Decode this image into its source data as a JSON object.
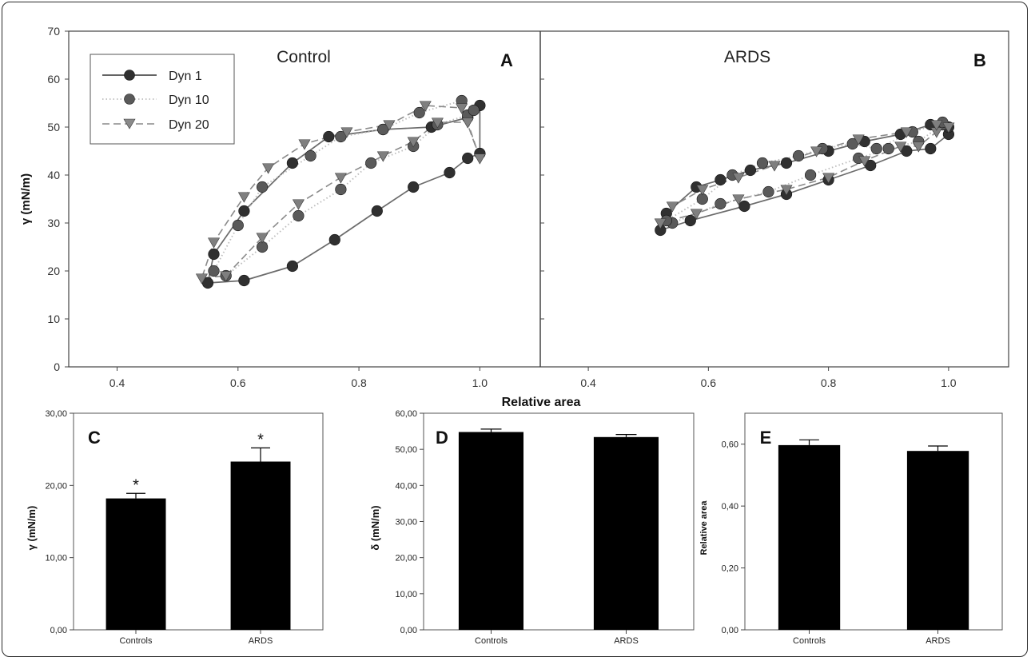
{
  "chart_data": [
    {
      "type": "line",
      "panel_letter": "A",
      "panel_title": "Control",
      "ylabel": "γ (mN/m)",
      "xlim": [
        0.32,
        1.1
      ],
      "ylim": [
        0,
        70
      ],
      "yticks": [
        "0",
        "10",
        "20",
        "30",
        "40",
        "50",
        "60",
        "70"
      ],
      "xticks": [
        [
          "0.4",
          0.4
        ],
        [
          "0.6",
          0.6
        ],
        [
          "0.8",
          0.8
        ],
        [
          "1.0",
          1.0
        ]
      ],
      "grid": false,
      "legend": {
        "placement": "top-left",
        "entries": [
          "Dyn 1",
          "Dyn 10",
          "Dyn 20"
        ]
      },
      "series": [
        {
          "name": "Dyn 1",
          "marker": "circle",
          "line": "solid",
          "color": "#303030",
          "x": [
            1.0,
            0.98,
            0.95,
            0.89,
            0.83,
            0.76,
            0.69,
            0.61,
            0.55,
            0.56,
            0.61,
            0.69,
            0.75,
            0.84,
            0.92,
            0.98,
            1.0
          ],
          "y": [
            44.5,
            43.5,
            40.5,
            37.5,
            32.5,
            26.5,
            21.0,
            18.0,
            17.5,
            23.5,
            32.5,
            42.5,
            48.0,
            49.5,
            50.0,
            52.0,
            54.5
          ]
        },
        {
          "name": "Dyn 10",
          "marker": "circle",
          "line": "dotted",
          "color": "#5a5a5a",
          "x": [
            0.98,
            0.93,
            0.89,
            0.82,
            0.77,
            0.7,
            0.64,
            0.58,
            0.56,
            0.6,
            0.64,
            0.72,
            0.77,
            0.84,
            0.9,
            0.97,
            0.99
          ],
          "y": [
            52.5,
            50.5,
            46.0,
            42.5,
            37.0,
            31.5,
            25.0,
            19.0,
            20.0,
            29.5,
            37.5,
            44.0,
            48.0,
            49.5,
            53.0,
            55.5,
            53.5
          ]
        },
        {
          "name": "Dyn 20",
          "marker": "triangle-down",
          "line": "dashed",
          "color": "#7f7f7f",
          "x": [
            1.0,
            0.98,
            0.93,
            0.89,
            0.84,
            0.77,
            0.7,
            0.64,
            0.58,
            0.54,
            0.56,
            0.61,
            0.65,
            0.71,
            0.78,
            0.85,
            0.91,
            0.97
          ],
          "y": [
            43.5,
            51.0,
            51.0,
            47.0,
            44.0,
            39.5,
            34.0,
            27.0,
            19.0,
            18.5,
            26.0,
            35.5,
            41.5,
            46.5,
            49.0,
            50.5,
            54.5,
            54.0
          ]
        }
      ]
    },
    {
      "type": "line",
      "panel_letter": "B",
      "panel_title": "ARDS",
      "xlim": [
        0.32,
        1.1
      ],
      "ylim": [
        0,
        70
      ],
      "xticks": [
        [
          "0.4",
          0.4
        ],
        [
          "0.6",
          0.6
        ],
        [
          "0.8",
          0.8
        ],
        [
          "1.0",
          1.0
        ]
      ],
      "grid": false,
      "series": [
        {
          "name": "Dyn 1",
          "marker": "circle",
          "line": "solid",
          "color": "#303030",
          "x": [
            1.0,
            0.97,
            0.93,
            0.87,
            0.8,
            0.73,
            0.66,
            0.57,
            0.52,
            0.53,
            0.58,
            0.62,
            0.67,
            0.73,
            0.8,
            0.86,
            0.92,
            0.97,
            1.0
          ],
          "y": [
            48.5,
            45.5,
            45.0,
            42.0,
            39.0,
            36.0,
            33.5,
            30.5,
            28.5,
            32.0,
            37.5,
            39.0,
            41.0,
            42.5,
            45.0,
            47.0,
            48.5,
            50.5,
            50.0
          ]
        },
        {
          "name": "Dyn 10",
          "marker": "circle",
          "line": "dotted",
          "color": "#5a5a5a",
          "x": [
            0.99,
            0.95,
            0.9,
            0.85,
            0.77,
            0.7,
            0.62,
            0.54,
            0.53,
            0.59,
            0.64,
            0.69,
            0.75,
            0.79,
            0.84,
            0.88,
            0.94,
            0.99
          ],
          "y": [
            50.5,
            47.0,
            45.5,
            43.5,
            40.0,
            36.5,
            34.0,
            30.0,
            30.5,
            35.0,
            40.0,
            42.5,
            44.0,
            45.5,
            46.5,
            45.5,
            49.0,
            51.0
          ]
        },
        {
          "name": "Dyn 20",
          "marker": "triangle-down",
          "line": "dashed",
          "color": "#7f7f7f",
          "x": [
            1.0,
            0.98,
            0.95,
            0.92,
            0.86,
            0.8,
            0.73,
            0.65,
            0.58,
            0.52,
            0.54,
            0.59,
            0.65,
            0.71,
            0.78,
            0.85,
            0.93,
            0.98
          ],
          "y": [
            50.0,
            49.0,
            46.0,
            46.0,
            43.0,
            39.5,
            37.0,
            35.0,
            32.0,
            30.0,
            33.5,
            37.0,
            39.5,
            42.0,
            45.0,
            47.5,
            49.0,
            50.5
          ]
        }
      ]
    },
    {
      "type": "bar",
      "panel_letter": "C",
      "categories": [
        "Controls",
        "ARDS"
      ],
      "values": [
        18.2,
        23.3
      ],
      "errors": [
        0.7,
        1.9
      ],
      "annotations": [
        "*",
        "*"
      ],
      "ylabel": "γ (mN/m)",
      "ylim": [
        0,
        30
      ],
      "yticks": [
        "0,00",
        "10,00",
        "20,00",
        "30,00"
      ]
    },
    {
      "type": "bar",
      "panel_letter": "D",
      "categories": [
        "Controls",
        "ARDS"
      ],
      "values": [
        54.8,
        53.4
      ],
      "errors": [
        0.8,
        0.7
      ],
      "annotations": [
        "",
        ""
      ],
      "ylabel": "δ (mN/m)",
      "ylim": [
        0,
        60
      ],
      "yticks": [
        "0,00",
        "10,00",
        "20,00",
        "30,00",
        "40,00",
        "50,00",
        "60,00"
      ]
    },
    {
      "type": "bar",
      "panel_letter": "E",
      "categories": [
        "Controls",
        "ARDS"
      ],
      "values": [
        0.597,
        0.578
      ],
      "errors": [
        0.017,
        0.016
      ],
      "annotations": [
        "",
        ""
      ],
      "ylabel": "Relative area",
      "ylim": [
        0,
        0.7
      ],
      "yticks": [
        "0,00",
        "0,20",
        "0,40",
        "0,60"
      ]
    }
  ],
  "shared_xlabel": "Relative area"
}
